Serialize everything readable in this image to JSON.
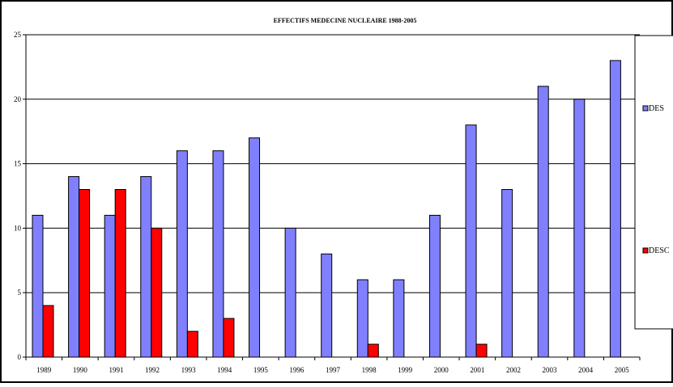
{
  "chart_data": {
    "type": "bar",
    "title": "EFFECTIFS MEDECINE NUCLEAIRE 1988-2005",
    "categories": [
      "1989",
      "1990",
      "1991",
      "1992",
      "1993",
      "1994",
      "1995",
      "1996",
      "1997",
      "1998",
      "1999",
      "2000",
      "2001",
      "2002",
      "2003",
      "2004",
      "2005"
    ],
    "series": [
      {
        "name": "DES",
        "color": "#8080ff",
        "values": [
          11,
          14,
          11,
          14,
          16,
          16,
          17,
          10,
          8,
          6,
          6,
          11,
          18,
          13,
          21,
          20,
          23
        ]
      },
      {
        "name": "DESC",
        "color": "#ff0000",
        "values": [
          4,
          13,
          13,
          10,
          2,
          3,
          0,
          0,
          0,
          1,
          0,
          0,
          1,
          0,
          0,
          0,
          0
        ]
      }
    ],
    "ylim": [
      0,
      25
    ],
    "yticks": [
      0,
      5,
      10,
      15,
      20,
      25
    ],
    "grid": true,
    "legend_position": "right"
  }
}
